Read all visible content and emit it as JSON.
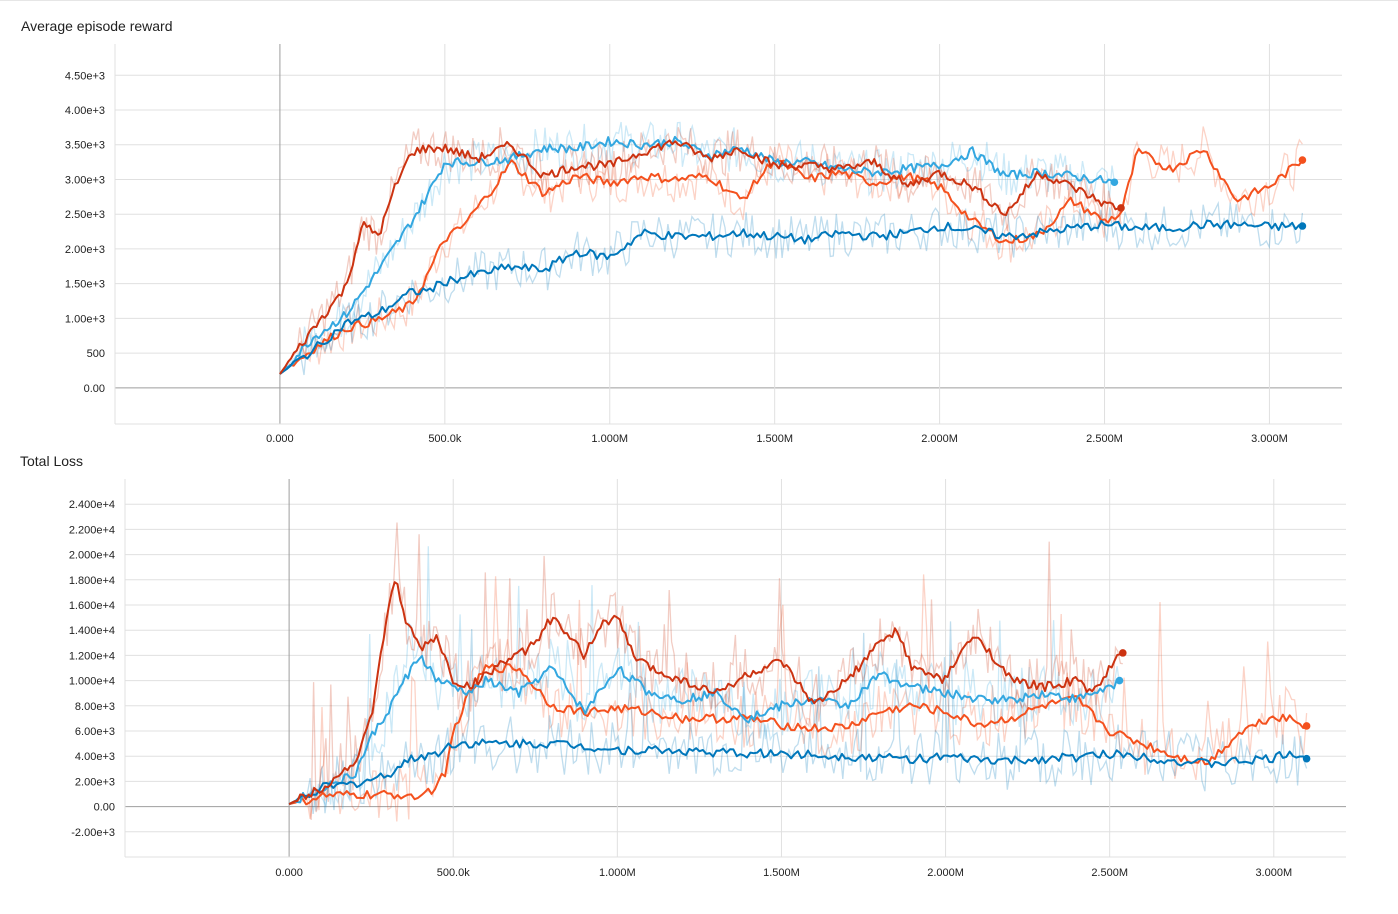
{
  "colors": {
    "series": [
      "#f4511e",
      "#33a7e0",
      "#0077bb",
      "#cc3311"
    ],
    "grid": "#e0e0e0",
    "axis": "#9e9e9e"
  },
  "chart_data": [
    {
      "type": "line",
      "title": "Average episode reward",
      "xlabel": "",
      "ylabel": "",
      "x_tick_labels": [
        "0.000",
        "500.0k",
        "1.000M",
        "1.500M",
        "2.000M",
        "2.500M",
        "3.000M"
      ],
      "x_ticks": [
        0,
        500000,
        1000000,
        1500000,
        2000000,
        2500000,
        3000000
      ],
      "y_tick_labels": [
        "0.00",
        "500",
        "1.00e+3",
        "1.50e+3",
        "2.00e+3",
        "2.50e+3",
        "3.00e+3",
        "3.50e+3",
        "4.00e+3",
        "4.50e+3"
      ],
      "y_ticks": [
        0,
        500,
        1000,
        1500,
        2000,
        2500,
        3000,
        3500,
        4000,
        4500
      ],
      "xlim": [
        -500000,
        3220000
      ],
      "ylim": [
        -520,
        4950
      ],
      "grid": true,
      "series": [
        {
          "color": "#f4511e",
          "x": [
            0,
            100000,
            200000,
            300000,
            400000,
            450000,
            500000,
            550000,
            650000,
            700000,
            800000,
            900000,
            1000000,
            1100000,
            1200000,
            1300000,
            1400000,
            1500000,
            1600000,
            1700000,
            1800000,
            1900000,
            2000000,
            2100000,
            2200000,
            2300000,
            2400000,
            2500000,
            2550000,
            2600000,
            2700000,
            2800000,
            2900000,
            3000000,
            3100000
          ],
          "y": [
            200,
            560,
            860,
            980,
            1200,
            1650,
            2150,
            2300,
            2900,
            3250,
            2800,
            3050,
            2950,
            3050,
            3000,
            3050,
            2700,
            3300,
            3000,
            3100,
            2950,
            3050,
            2900,
            2400,
            2100,
            2200,
            2700,
            2400,
            2500,
            3400,
            3150,
            3450,
            2700,
            2900,
            3280
          ]
        },
        {
          "color": "#33a7e0",
          "x": [
            0,
            100000,
            200000,
            300000,
            400000,
            450000,
            500000,
            600000,
            700000,
            800000,
            900000,
            1000000,
            1100000,
            1200000,
            1300000,
            1400000,
            1500000,
            1600000,
            1700000,
            1800000,
            1900000,
            2000000,
            2100000,
            2200000,
            2300000,
            2400000,
            2530000
          ],
          "y": [
            200,
            720,
            1050,
            1700,
            2400,
            2800,
            3250,
            3250,
            3300,
            3450,
            3450,
            3550,
            3500,
            3550,
            3350,
            3450,
            3250,
            3250,
            3150,
            3100,
            3150,
            3200,
            3400,
            3050,
            3100,
            3050,
            2960
          ]
        },
        {
          "color": "#0077bb",
          "x": [
            0,
            100000,
            200000,
            300000,
            400000,
            450000,
            500000,
            600000,
            700000,
            800000,
            900000,
            1000000,
            1100000,
            1200000,
            1300000,
            1400000,
            1500000,
            1600000,
            1700000,
            1800000,
            1900000,
            2000000,
            2100000,
            2200000,
            2300000,
            2400000,
            2500000,
            2600000,
            2700000,
            2800000,
            2900000,
            3000000,
            3100000
          ],
          "y": [
            200,
            540,
            930,
            1080,
            1380,
            1400,
            1530,
            1640,
            1740,
            1700,
            1960,
            1880,
            2230,
            2180,
            2180,
            2230,
            2180,
            2130,
            2230,
            2180,
            2230,
            2330,
            2280,
            2180,
            2230,
            2300,
            2350,
            2300,
            2300,
            2350,
            2350,
            2320,
            2330
          ]
        },
        {
          "color": "#cc3311",
          "x": [
            0,
            100000,
            200000,
            250000,
            300000,
            350000,
            400000,
            450000,
            500000,
            600000,
            700000,
            800000,
            900000,
            1000000,
            1100000,
            1200000,
            1300000,
            1400000,
            1500000,
            1600000,
            1700000,
            1800000,
            1900000,
            2000000,
            2100000,
            2200000,
            2300000,
            2400000,
            2500000,
            2550000
          ],
          "y": [
            200,
            850,
            1450,
            2350,
            2200,
            2900,
            3400,
            3450,
            3450,
            3300,
            3500,
            3050,
            3200,
            3200,
            3400,
            3550,
            3300,
            3450,
            3200,
            3200,
            3150,
            3250,
            2900,
            3100,
            2900,
            2500,
            3100,
            2900,
            2650,
            2590
          ]
        }
      ]
    },
    {
      "type": "line",
      "title": "Total Loss",
      "xlabel": "",
      "ylabel": "",
      "x_tick_labels": [
        "0.000",
        "500.0k",
        "1.000M",
        "1.500M",
        "2.000M",
        "2.500M",
        "3.000M"
      ],
      "x_ticks": [
        0,
        500000,
        1000000,
        1500000,
        2000000,
        2500000,
        3000000
      ],
      "y_tick_labels": [
        "-2.00e+3",
        "0.00",
        "2.00e+3",
        "4.00e+3",
        "6.00e+3",
        "8.00e+3",
        "1.000e+4",
        "1.200e+4",
        "1.400e+4",
        "1.600e+4",
        "1.800e+4",
        "2.000e+4",
        "2.200e+4",
        "2.400e+4"
      ],
      "y_ticks": [
        -2000,
        0,
        2000,
        4000,
        6000,
        8000,
        10000,
        12000,
        14000,
        16000,
        18000,
        20000,
        22000,
        24000
      ],
      "xlim": [
        -500000,
        3220000
      ],
      "ylim": [
        -4000,
        26000
      ],
      "grid": true,
      "series": [
        {
          "color": "#f4511e",
          "x": [
            0,
            100000,
            200000,
            300000,
            400000,
            450000,
            480000,
            500000,
            550000,
            600000,
            700000,
            800000,
            900000,
            1000000,
            1100000,
            1200000,
            1300000,
            1400000,
            1500000,
            1600000,
            1700000,
            1800000,
            1900000,
            2000000,
            2100000,
            2200000,
            2300000,
            2400000,
            2500000,
            2600000,
            2700000,
            2800000,
            2900000,
            3000000,
            3050000,
            3100000
          ],
          "y": [
            200,
            800,
            900,
            900,
            950,
            1500,
            3000,
            6000,
            9000,
            11000,
            11000,
            8000,
            7500,
            7800,
            7500,
            7000,
            7000,
            7000,
            6500,
            6200,
            6300,
            7500,
            8000,
            7500,
            6500,
            7000,
            8000,
            8500,
            6000,
            5000,
            4000,
            3500,
            6000,
            7200,
            7000,
            6400
          ]
        },
        {
          "color": "#33a7e0",
          "x": [
            0,
            100000,
            200000,
            250000,
            300000,
            350000,
            400000,
            450000,
            500000,
            550000,
            600000,
            700000,
            800000,
            900000,
            1000000,
            1100000,
            1200000,
            1300000,
            1400000,
            1500000,
            1600000,
            1700000,
            1800000,
            1900000,
            2000000,
            2100000,
            2200000,
            2300000,
            2400000,
            2500000,
            2530000
          ],
          "y": [
            200,
            1500,
            2500,
            5500,
            7500,
            10000,
            12000,
            10000,
            9500,
            9000,
            10000,
            9000,
            11000,
            7500,
            11000,
            9000,
            8500,
            9000,
            7000,
            8000,
            8500,
            8000,
            10500,
            9500,
            9000,
            8500,
            8500,
            9000,
            8500,
            9500,
            10000
          ]
        },
        {
          "color": "#0077bb",
          "x": [
            0,
            100000,
            200000,
            300000,
            350000,
            400000,
            450000,
            500000,
            600000,
            700000,
            800000,
            900000,
            1000000,
            1100000,
            1200000,
            1300000,
            1400000,
            1500000,
            1600000,
            1700000,
            1800000,
            1900000,
            2000000,
            2100000,
            2200000,
            2300000,
            2400000,
            2500000,
            2600000,
            2700000,
            2800000,
            2900000,
            3000000,
            3050000,
            3100000
          ],
          "y": [
            200,
            1500,
            1800,
            2500,
            3500,
            4000,
            4200,
            5000,
            5000,
            5000,
            5000,
            4800,
            4500,
            4500,
            4400,
            4300,
            4200,
            4200,
            4100,
            4000,
            3900,
            3800,
            3900,
            3700,
            3600,
            3800,
            3900,
            4200,
            4000,
            3600,
            3400,
            3600,
            3800,
            4300,
            3800
          ]
        },
        {
          "color": "#cc3311",
          "x": [
            0,
            100000,
            200000,
            250000,
            280000,
            310000,
            330000,
            350000,
            400000,
            450000,
            500000,
            550000,
            600000,
            650000,
            700000,
            750000,
            800000,
            900000,
            950000,
            1000000,
            1050000,
            1100000,
            1200000,
            1300000,
            1400000,
            1500000,
            1600000,
            1700000,
            1800000,
            1850000,
            1900000,
            2000000,
            2050000,
            2100000,
            2200000,
            2300000,
            2400000,
            2450000,
            2500000,
            2540000
          ],
          "y": [
            200,
            1500,
            3500,
            7000,
            12000,
            17000,
            18000,
            15000,
            12500,
            13500,
            10000,
            9500,
            10500,
            11500,
            12000,
            13000,
            15000,
            12000,
            14500,
            15000,
            12000,
            11000,
            10000,
            9000,
            10500,
            11500,
            8000,
            10000,
            13000,
            14000,
            11000,
            10000,
            12500,
            13500,
            10000,
            9500,
            10000,
            9000,
            11000,
            12200
          ]
        }
      ]
    }
  ]
}
